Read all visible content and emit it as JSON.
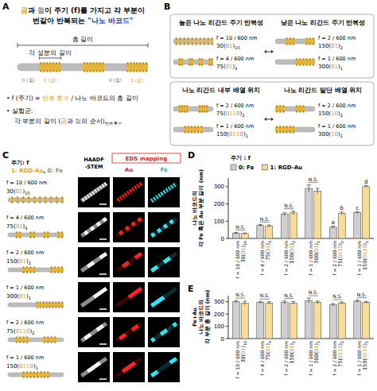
{
  "panel_labels": [
    "A",
    "B",
    "C",
    "D",
    "E"
  ],
  "digit_colors": {
    "0": "#8c8c8c",
    "1": "#d4a12a"
  },
  "panel_a": {
    "title_lines": [
      [
        {
          "text": "금",
          "color": "#d4a12a"
        },
        {
          "text": "과 "
        },
        {
          "text": "철",
          "color": "#8c8c8c"
        },
        {
          "text": "이 주기 (f)를 가지고 각 부분이"
        }
      ],
      [
        {
          "text": "번갈아 반복되는 "
        },
        {
          "text": "\"나노 바코드\"",
          "color": "#2336b8"
        }
      ]
    ],
    "total_length": "총 길이",
    "segment_length": "각 성분의 길이",
    "segment_labels": [
      "0 (철)",
      "1 (금)",
      "0 (철)",
      "1 (금)"
    ],
    "bullets": [
      [
        [
          {
            "text": "• f (주기) = "
          },
          {
            "text": "반복 횟수",
            "color": "#d4a12a"
          },
          {
            "text": " / 나노 바코드의 총 길이"
          }
        ]
      ],
      [
        [
          {
            "text": "• 실험군:"
          }
        ],
        [
          {
            "text": "각 부분의 길이 ("
          },
          {
            "text": "금",
            "color": "#d4a12a"
          },
          {
            "text": "과 "
          },
          {
            "text": "철",
            "color": "#8c8c8c"
          },
          {
            "text": "의 순서)"
          },
          {
            "text": "반복 횟수",
            "sub": true
          }
        ]
      ]
    ]
  },
  "panel_b": {
    "groups": [
      {
        "titles": [
          "높은 나노 리간드 주기 반복성",
          "낮은 나노 리간드 주기 반복성"
        ],
        "sides": [
          [
            {
              "f": "f = 10 / 600 nm",
              "code": [
                "30(",
                "01",
                ")",
                "10"
              ]
            },
            {
              "f": "f = 4 / 600 nm",
              "code": [
                "75(",
                "01",
                ")",
                "4"
              ]
            }
          ],
          [
            {
              "f": "f = 2 / 600 nm",
              "code": [
                "150(",
                "01",
                ")",
                "2"
              ]
            },
            {
              "f": "f = 1 / 600 nm",
              "code": [
                "300(",
                "01",
                ")",
                "1"
              ]
            }
          ]
        ]
      },
      {
        "titles": [
          "나노 리간드 내부 배열 위치",
          "나노 리간드 말단 배열 위치"
        ],
        "sides": [
          [
            {
              "f": "f = 2 / 600 nm",
              "code": [
                "75(",
                "0110",
                ")",
                "2"
              ]
            },
            {
              "f": "f = 1 / 600 nm",
              "code": [
                "150(",
                "0110",
                ")",
                "1"
              ]
            }
          ],
          [
            {
              "f": "f = 2 / 600 nm",
              "code": [
                "150(",
                "10",
                ")",
                "2"
              ]
            },
            {
              "f": "f = 1 / 600 nm",
              "code": [
                "300(",
                "10",
                ")",
                "1"
              ]
            }
          ]
        ]
      }
    ]
  },
  "panel_c": {
    "legend_title": "주기: f",
    "legend_parts": [
      {
        "text": "1: RGD-Au",
        "color": "#d4a12a"
      },
      {
        "text": ", "
      },
      {
        "text": "0: Fe",
        "color": "#8c8c8c"
      }
    ],
    "haadf": [
      "HAADF",
      "-STEM"
    ],
    "eds": "EDS mapping",
    "au": "Au",
    "fe": "Fe",
    "rows": [
      {
        "f": "f = 10 / 600 nm",
        "code": [
          "30(",
          "01",
          ")",
          "10"
        ]
      },
      {
        "f": "f = 4 / 600 nm",
        "code": [
          "75(",
          "01",
          ")",
          "4"
        ]
      },
      {
        "f": "f = 2 / 600 nm",
        "code": [
          "150(",
          "01",
          ")",
          "2"
        ]
      },
      {
        "f": "f = 1 / 600 nm",
        "code": [
          "300(",
          "01",
          ")",
          "1"
        ]
      },
      {
        "f": "f = 2 / 600 nm",
        "code": [
          "75(",
          "0110",
          ")",
          "2"
        ]
      },
      {
        "f": "f = 1 / 600 nm",
        "code": [
          "150(",
          "0110",
          ")",
          "1"
        ]
      }
    ]
  },
  "chart_data": [
    {
      "type": "bar",
      "legend_title": "주기 : f",
      "legend": "top",
      "ylabel": [
        "나노 바코드의",
        "각 Fe 혹은 Au 부분 길이 (nm)"
      ],
      "categories": [
        "f = 10 / 600 nm",
        "f = 4 / 600 nm",
        "f = 2 / 600 nm",
        "f = 1 / 600 nm",
        "f = 2 / 600 nm",
        "f = 1 / 600 nm"
      ],
      "category_codes": [
        [
          "30(",
          "01",
          ")",
          "10"
        ],
        [
          "75(",
          "01",
          ")",
          "4"
        ],
        [
          "150(",
          "01",
          ")",
          "2"
        ],
        [
          "300(",
          "01",
          ")",
          "1"
        ],
        [
          "75(",
          "0110",
          ")",
          "2"
        ],
        [
          "150(",
          "0110",
          ")",
          "1"
        ]
      ],
      "series": [
        {
          "name": "0: Fe",
          "color": "#cfcfcf",
          "values": [
            30,
            75,
            140,
            290,
            65,
            150
          ],
          "errors": [
            4,
            5,
            8,
            20,
            6,
            5
          ],
          "letters": [
            null,
            null,
            null,
            null,
            "a",
            "c"
          ]
        },
        {
          "name": "1: RGD-Au",
          "color": "#f6dc96",
          "values": [
            28,
            72,
            148,
            275,
            145,
            300
          ],
          "errors": [
            3,
            6,
            10,
            15,
            8,
            6
          ],
          "letters": [
            null,
            null,
            null,
            null,
            "b",
            "d"
          ]
        }
      ],
      "annotations": [
        {
          "text": "N.S.",
          "category": 0
        },
        {
          "text": "N.S.",
          "category": 1
        },
        {
          "text": "N.S.",
          "category": 2
        },
        {
          "text": "N.S.",
          "category": 3
        }
      ],
      "ylim": [
        0,
        350
      ],
      "yticks": [
        0,
        100,
        200,
        300
      ]
    },
    {
      "type": "bar",
      "ylabel": [
        "Fe+Au",
        "나노 바코드의",
        "각 부분 총 길이 (nm)"
      ],
      "categories": [
        "f = 10 / 600 nm",
        "f = 4 / 600 nm",
        "f = 2 / 600 nm",
        "f = 1 / 600 nm",
        "f = 2 / 600 nm",
        "f = 1 / 600 nm"
      ],
      "category_codes": [
        [
          "30(",
          "01",
          ")",
          "10"
        ],
        [
          "75(",
          "01",
          ")",
          "4"
        ],
        [
          "150(",
          "01",
          ")",
          "2"
        ],
        [
          "300(",
          "01",
          ")",
          "1"
        ],
        [
          "75(",
          "0110",
          ")",
          "2"
        ],
        [
          "150(",
          "0110",
          ")",
          "1"
        ]
      ],
      "series": [
        {
          "name": "0: Fe",
          "color": "#cfcfcf",
          "values": [
            300,
            295,
            295,
            310,
            275,
            305
          ],
          "errors": [
            10,
            8,
            12,
            20,
            10,
            8
          ]
        },
        {
          "name": "1: RGD-Au",
          "color": "#f6dc96",
          "values": [
            290,
            290,
            290,
            295,
            290,
            295
          ],
          "errors": [
            15,
            10,
            12,
            10,
            8,
            8
          ]
        }
      ],
      "annotations": [
        {
          "text": "N.S.",
          "category": 0
        },
        {
          "text": "N.S.",
          "category": 1
        },
        {
          "text": "N.S.",
          "category": 2
        },
        {
          "text": "N.S.",
          "category": 3
        },
        {
          "text": "N.S.",
          "category": 4
        },
        {
          "text": "N.S.",
          "category": 5
        }
      ],
      "ylim": [
        0,
        350
      ],
      "yticks": [
        0,
        100,
        200,
        300
      ]
    }
  ]
}
